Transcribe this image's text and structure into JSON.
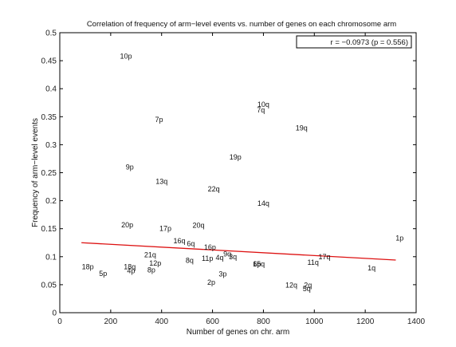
{
  "chart_data": {
    "type": "scatter",
    "title": "Correlation of frequency of arm−level events vs. number of genes on each chromosome arm",
    "xlabel": "Number of genes on chr. arm",
    "ylabel": "Frequency of arm−level events",
    "xlim": [
      0,
      1400
    ],
    "ylim": [
      0,
      0.5
    ],
    "xticks": [
      0,
      200,
      400,
      600,
      800,
      1000,
      1200,
      1400
    ],
    "yticks": [
      0,
      0.05,
      0.1,
      0.15,
      0.2,
      0.25,
      0.3,
      0.35,
      0.4,
      0.45,
      0.5
    ],
    "ytick_labels": [
      "0",
      "0.05",
      "0.1",
      "0.15",
      "0.2",
      "0.25",
      "0.3",
      "0.35",
      "0.4",
      "0.45",
      "0.5"
    ],
    "grid": false,
    "legend": "none",
    "annotation": "r = −0.0973 (p = 0.556)",
    "points": [
      {
        "label": "10p",
        "x": 260,
        "y": 0.458
      },
      {
        "label": "10q",
        "x": 800,
        "y": 0.372
      },
      {
        "label": "7q",
        "x": 790,
        "y": 0.362
      },
      {
        "label": "7p",
        "x": 390,
        "y": 0.345
      },
      {
        "label": "19q",
        "x": 950,
        "y": 0.33
      },
      {
        "label": "19p",
        "x": 690,
        "y": 0.278
      },
      {
        "label": "9p",
        "x": 275,
        "y": 0.26
      },
      {
        "label": "13q",
        "x": 400,
        "y": 0.234
      },
      {
        "label": "22q",
        "x": 605,
        "y": 0.221
      },
      {
        "label": "14q",
        "x": 800,
        "y": 0.195
      },
      {
        "label": "20p",
        "x": 265,
        "y": 0.157
      },
      {
        "label": "20q",
        "x": 545,
        "y": 0.156
      },
      {
        "label": "17p",
        "x": 415,
        "y": 0.15
      },
      {
        "label": "1p",
        "x": 1335,
        "y": 0.133
      },
      {
        "label": "16q",
        "x": 470,
        "y": 0.128
      },
      {
        "label": "6q",
        "x": 515,
        "y": 0.123
      },
      {
        "label": "16p",
        "x": 590,
        "y": 0.117
      },
      {
        "label": "21q",
        "x": 355,
        "y": 0.103
      },
      {
        "label": "9q",
        "x": 658,
        "y": 0.105
      },
      {
        "label": "3q",
        "x": 680,
        "y": 0.1
      },
      {
        "label": "4q",
        "x": 628,
        "y": 0.098
      },
      {
        "label": "11p",
        "x": 580,
        "y": 0.097
      },
      {
        "label": "8q",
        "x": 510,
        "y": 0.093
      },
      {
        "label": "17q",
        "x": 1040,
        "y": 0.1
      },
      {
        "label": "11q",
        "x": 995,
        "y": 0.09
      },
      {
        "label": "6p",
        "x": 775,
        "y": 0.087
      },
      {
        "label": "15q",
        "x": 782,
        "y": 0.087
      },
      {
        "label": "12p",
        "x": 375,
        "y": 0.088
      },
      {
        "label": "18p",
        "x": 110,
        "y": 0.082
      },
      {
        "label": "18q",
        "x": 275,
        "y": 0.082
      },
      {
        "label": "4p",
        "x": 280,
        "y": 0.075
      },
      {
        "label": "8p",
        "x": 360,
        "y": 0.076
      },
      {
        "label": "1q",
        "x": 1225,
        "y": 0.08
      },
      {
        "label": "5p",
        "x": 170,
        "y": 0.07
      },
      {
        "label": "3p",
        "x": 640,
        "y": 0.069
      },
      {
        "label": "2p",
        "x": 595,
        "y": 0.054
      },
      {
        "label": "12q",
        "x": 910,
        "y": 0.049
      },
      {
        "label": "2q",
        "x": 975,
        "y": 0.049
      },
      {
        "label": "5q",
        "x": 970,
        "y": 0.043
      }
    ],
    "fit_line": {
      "x": [
        85,
        1320
      ],
      "y": [
        0.125,
        0.094
      ],
      "color": "#dd1111"
    }
  }
}
